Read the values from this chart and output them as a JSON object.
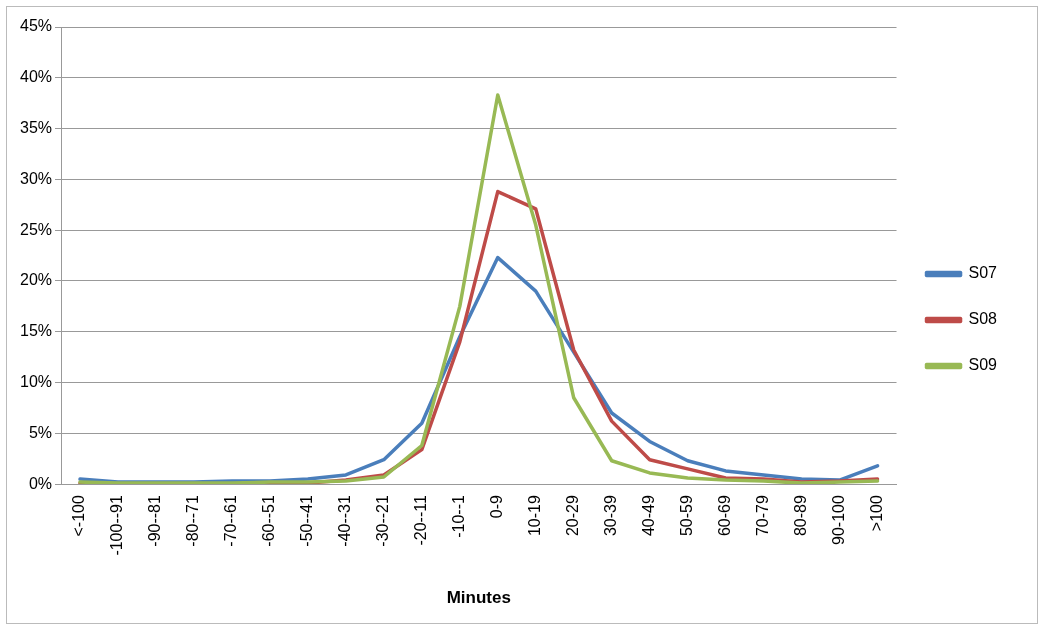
{
  "chart_data": {
    "type": "line",
    "xlabel": "Minutes",
    "categories": [
      "<-100",
      "-100--91",
      "-90--81",
      "-80--71",
      "-70--61",
      "-60--51",
      "-50--41",
      "-40--31",
      "-30--21",
      "-20--11",
      "-10--1",
      "0-9",
      "10-19",
      "20-29",
      "30-39",
      "40-49",
      "50-59",
      "60-69",
      "70-79",
      "80-89",
      "90-100",
      ">100"
    ],
    "series": [
      {
        "name": "S07",
        "color": "#4a7ebb",
        "values": [
          0.5,
          0.2,
          0.2,
          0.2,
          0.3,
          0.3,
          0.5,
          0.9,
          2.4,
          6.0,
          14.5,
          22.3,
          19.0,
          13.0,
          7.0,
          4.2,
          2.3,
          1.3,
          0.9,
          0.5,
          0.4,
          1.8
        ]
      },
      {
        "name": "S08",
        "color": "#be4b48",
        "values": [
          0.1,
          0.0,
          0.0,
          0.0,
          0.0,
          0.0,
          0.1,
          0.4,
          0.9,
          3.4,
          14.0,
          28.8,
          27.1,
          13.2,
          6.2,
          2.4,
          1.5,
          0.6,
          0.5,
          0.2,
          0.3,
          0.5
        ]
      },
      {
        "name": "S09",
        "color": "#98b954",
        "values": [
          0.2,
          0.1,
          0.1,
          0.1,
          0.1,
          0.2,
          0.2,
          0.3,
          0.7,
          3.8,
          17.5,
          38.3,
          25.5,
          8.5,
          2.3,
          1.1,
          0.6,
          0.4,
          0.3,
          0.1,
          0.2,
          0.3
        ]
      }
    ],
    "ylim": [
      0,
      45
    ],
    "yticks": [
      {
        "value": 0,
        "label": "0%"
      },
      {
        "value": 5,
        "label": "5%"
      },
      {
        "value": 10,
        "label": "10%"
      },
      {
        "value": 15,
        "label": "15%"
      },
      {
        "value": 20,
        "label": "20%"
      },
      {
        "value": 25,
        "label": "25%"
      },
      {
        "value": 30,
        "label": "30%"
      },
      {
        "value": 35,
        "label": "35%"
      },
      {
        "value": 40,
        "label": "40%"
      },
      {
        "value": 45,
        "label": "45%"
      }
    ],
    "grid": "y",
    "legend": "right",
    "marker": "none",
    "line_style": "solid"
  }
}
